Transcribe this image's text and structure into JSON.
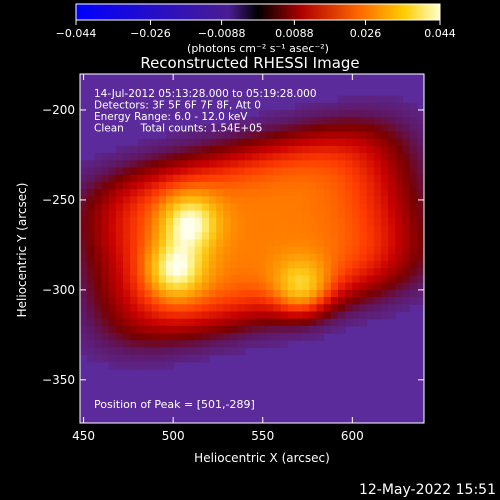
{
  "colorbar": {
    "ticks": [
      "-0.044",
      "-0.026",
      "-0.0088",
      "0.0088",
      "0.026",
      "0.044"
    ],
    "range": [
      -0.044,
      0.044
    ],
    "units": "(photons cm⁻² s⁻¹ asec⁻²)"
  },
  "date_stamp": "12-May-2022 15:51",
  "chart_data": {
    "type": "heatmap",
    "title": "Reconstructed RHESSI Image",
    "xlabel": "Heliocentric X (arcsec)",
    "ylabel": "Heliocentric Y (arcsec)",
    "xlim": [
      448,
      640
    ],
    "ylim": [
      -374,
      -180
    ],
    "x_ticks": [
      450,
      500,
      550,
      600
    ],
    "y_ticks": [
      -200,
      -250,
      -300,
      -350
    ],
    "x_tick_labels": [
      "450",
      "500",
      "550",
      "600"
    ],
    "y_tick_labels": [
      "−200",
      "−250",
      "−300",
      "−350"
    ],
    "info_lines": [
      "14-Jul-2012 05:13:28.000 to 05:19:28.000",
      "Detectors: 3F 5F 6F 7F 8F, Att 0",
      "Energy Range: 6.0 - 12.0 keV",
      "Clean     Total counts: 1.54E+05"
    ],
    "peak_label": "Position of Peak = [501,-289]",
    "peak_position": [
      501,
      -289
    ],
    "sources": [
      {
        "x": 501,
        "y": -289,
        "peak": 1.0
      },
      {
        "x": 509,
        "y": -263,
        "peak": 0.95
      },
      {
        "x": 572,
        "y": -300,
        "peak": 0.85
      }
    ]
  }
}
